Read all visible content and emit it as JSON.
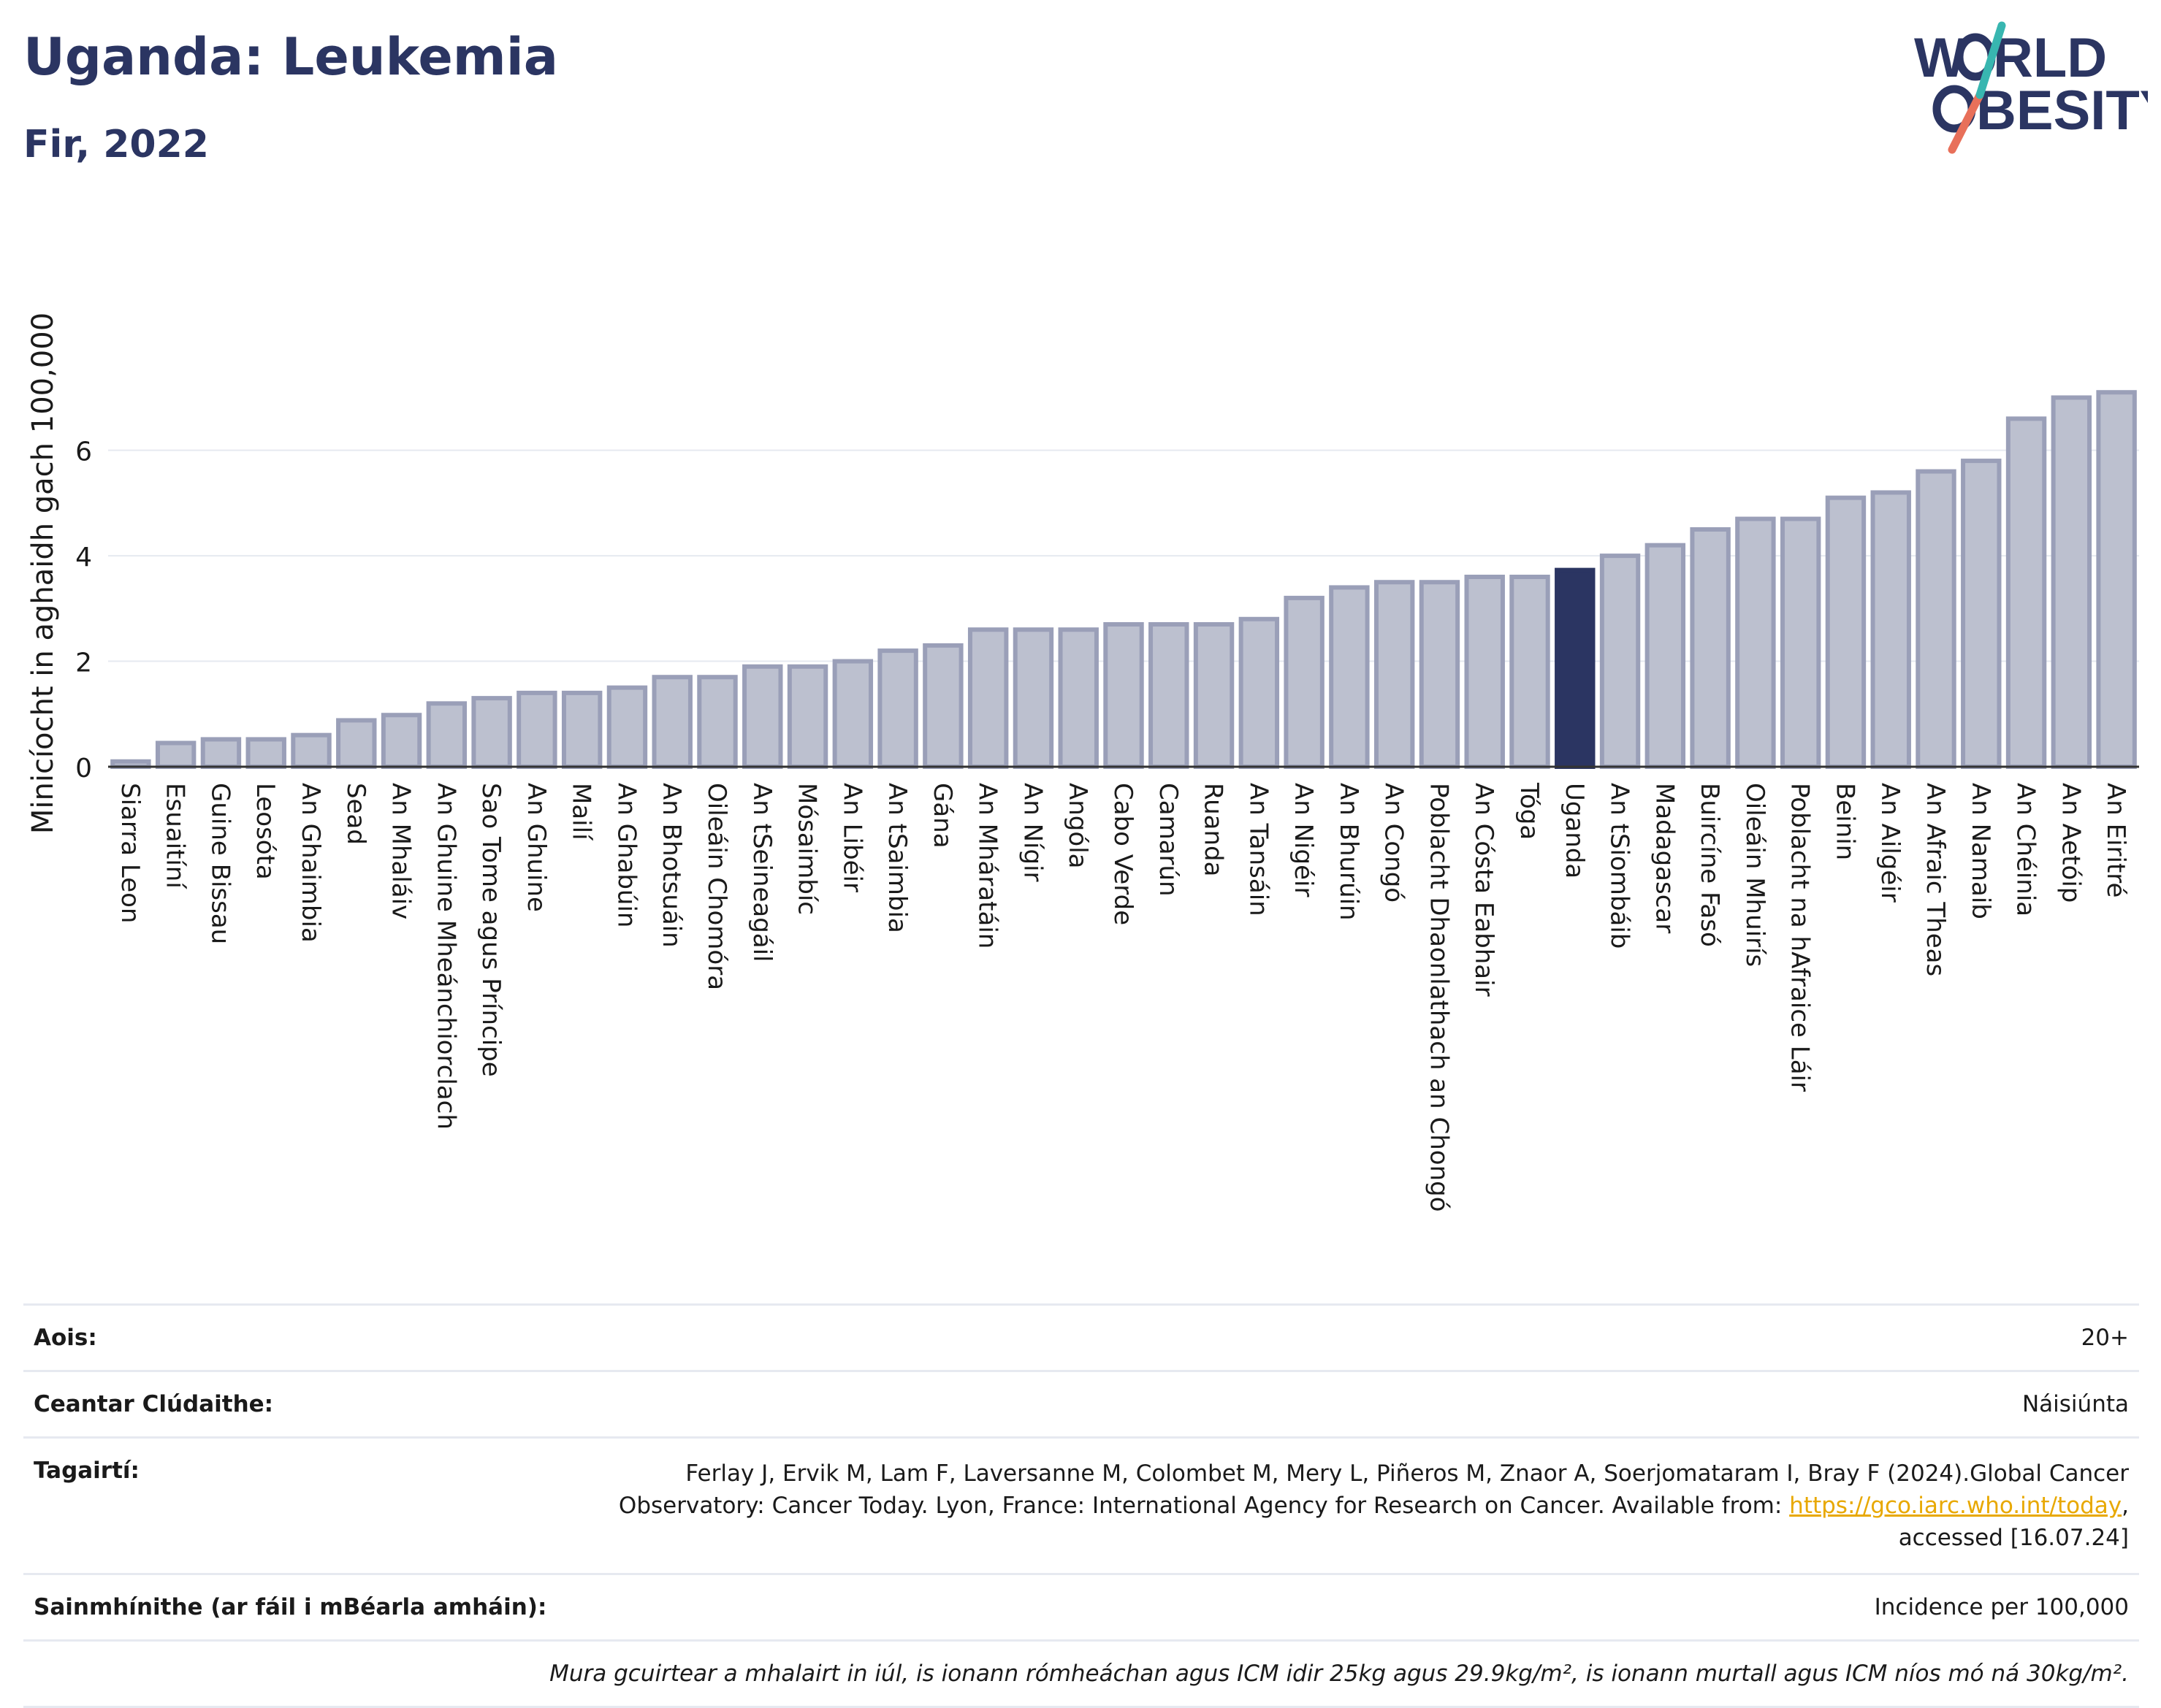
{
  "header": {
    "title": "Uganda: Leukemia",
    "subtitle": "Fir, 2022"
  },
  "logo": {
    "line1_a": "W",
    "line1_b": "RLD",
    "line2_b": "BESITY",
    "slash_colors": [
      "#e8705a",
      "#38b6b0"
    ],
    "text_color": "#2b3562"
  },
  "colors": {
    "bar": "#bcc0cf",
    "bar_stroke": "#9a9fb8",
    "highlight": "#2b3562",
    "grid": "#e6e9f0",
    "axis": "#333333"
  },
  "chart_data": {
    "type": "bar",
    "ylabel": "Minicíocht in aghaidh gach 100,000",
    "ylim": [
      0,
      7.2
    ],
    "yticks": [
      0,
      2,
      4,
      6
    ],
    "grid": true,
    "highlight": "Uganda",
    "categories": [
      "Siarra Leon",
      "Esuaitíní",
      "Guine Bissau",
      "Leosóta",
      "An Ghaimbia",
      "Sead",
      "An Mhaláiv",
      "An Ghuine Mheánchiorclach",
      "Sao Tome agus Príncipe",
      "An Ghuine",
      "Mailí",
      "An Ghabúin",
      "An Bhotsuáin",
      "Oileáin Chomóra",
      "An tSeineagáil",
      "Mósaimbíc",
      "An Libéir",
      "An tSaimbia",
      "Gána",
      "An Mháratáin",
      "An Nígir",
      "Angóla",
      "Cabo Verde",
      "Camarún",
      "Ruanda",
      "An Tansáin",
      "An Nigéir",
      "An Bhurúin",
      "An Congó",
      "Poblacht Dhaonlathach an Chongó",
      "An Cósta Eabhair",
      "Tóga",
      "Uganda",
      "An tSiombáib",
      "Madagascar",
      "Buircíne Fasó",
      "Oileáin Mhuirís",
      "Poblacht na hAfraice Láir",
      "Beinin",
      "An Ailgéir",
      "An Afraic Theas",
      "An Namaib",
      "An Chéinia",
      "An Aetóip",
      "An Eiritré"
    ],
    "values": [
      0.1,
      0.45,
      0.52,
      0.52,
      0.6,
      0.88,
      0.98,
      1.2,
      1.3,
      1.4,
      1.4,
      1.5,
      1.7,
      1.7,
      1.9,
      1.9,
      2.0,
      2.2,
      2.3,
      2.6,
      2.6,
      2.6,
      2.7,
      2.7,
      2.7,
      2.8,
      3.2,
      3.4,
      3.5,
      3.5,
      3.6,
      3.6,
      3.73,
      4.0,
      4.2,
      4.5,
      4.7,
      4.7,
      5.1,
      5.2,
      5.6,
      5.8,
      6.6,
      7.0,
      7.1
    ]
  },
  "info": {
    "age_label": "Aois:",
    "age_value": "20+",
    "area_label": "Ceantar Clúdaithe:",
    "area_value": "Náisiúnta",
    "ref_label": "Tagairtí:",
    "ref_text_1": "Ferlay J, Ervik M, Lam F, Laversanne M, Colombet M, Mery L, Piñeros M, Znaor A, Soerjomataram I, Bray F (2024).Global Cancer Observatory: Cancer Today. Lyon, France: International Agency for Research on Cancer. Available from: ",
    "ref_link": "https://gco.iarc.who.int/today",
    "ref_text_2": ", accessed [16.07.24]",
    "def_label": "Sainmhínithe (ar fáil i mBéarla amháin):",
    "def_value": "Incidence per 100,000",
    "note": "Mura gcuirtear a mhalairt in iúl, is ionann rómheáchan agus ICM idir 25kg agus 29.9kg/m², is ionann murtall agus ICM níos mó ná 30kg/m²."
  }
}
